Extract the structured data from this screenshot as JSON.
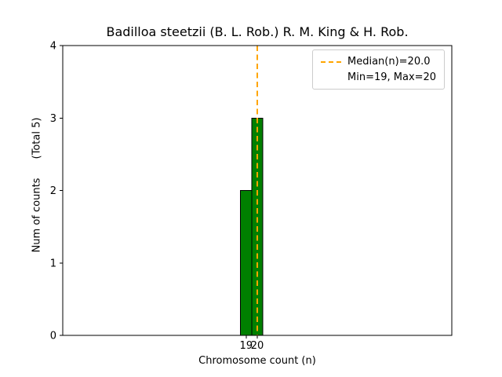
{
  "chart_data": {
    "type": "bar",
    "title": "Badilloa steetzii (B. L. Rob.) R. M. King & H. Rob.",
    "xlabel": "Chromosome count (n)",
    "ylabel": "Num of counts",
    "ylabel_total": "(Total 5)",
    "total_counts": 5,
    "bars": [
      {
        "x": 19,
        "count": 2
      },
      {
        "x": 20,
        "count": 3
      }
    ],
    "bar_width": 1,
    "bar_color": "#008000",
    "bar_edge_color": "#000000",
    "median": 20.0,
    "min": 19,
    "max": 20,
    "median_line_color": "#ffa500",
    "xticks": [
      19,
      20
    ],
    "yticks": [
      0,
      1,
      2,
      3,
      4
    ],
    "xlim": [
      2.5,
      37.5
    ],
    "ylim": [
      0,
      4
    ],
    "grid": false,
    "legend": {
      "position": "top-right",
      "entries": [
        {
          "label": "Median(n)=20.0",
          "swatch": "dashed-line"
        },
        {
          "label": "Min=19, Max=20",
          "swatch": "none"
        }
      ]
    }
  }
}
